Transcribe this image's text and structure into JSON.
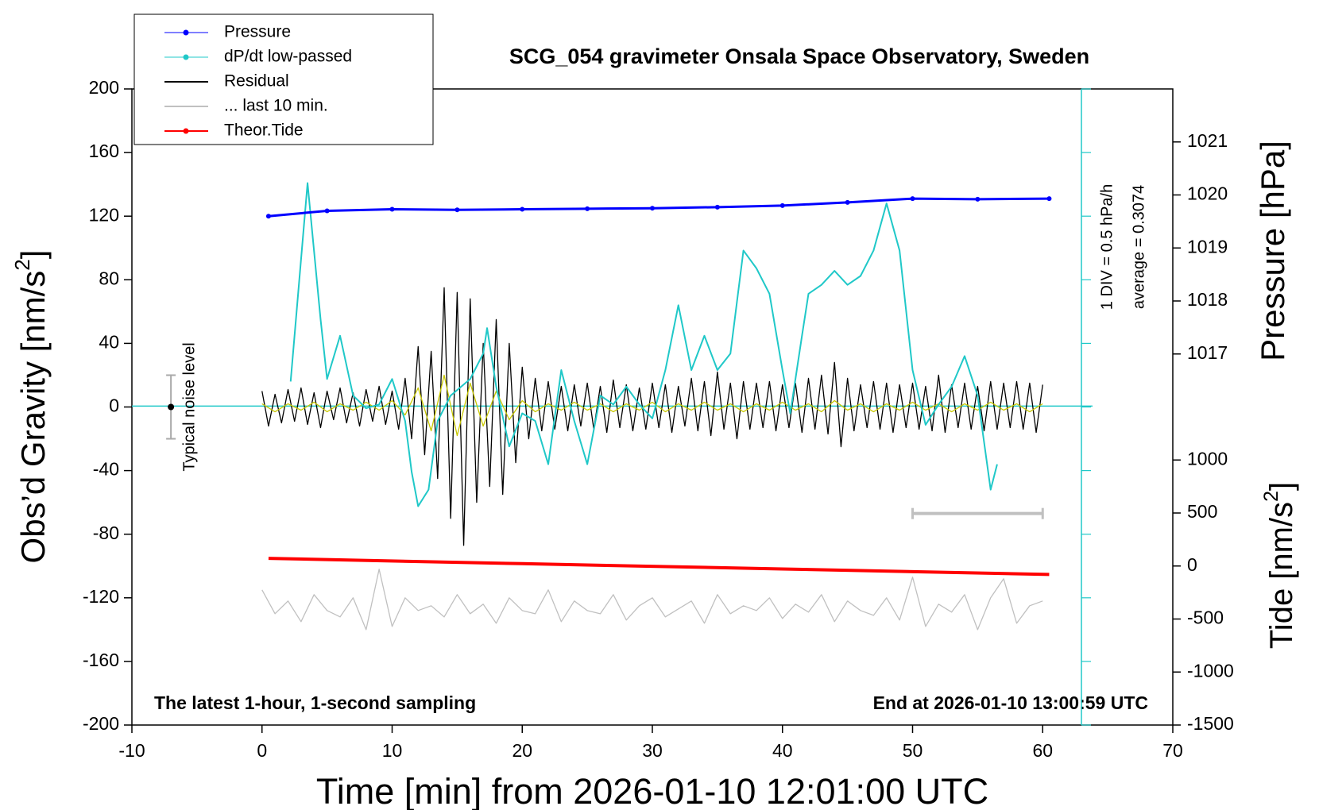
{
  "chart_data": {
    "type": "line",
    "title": "SCG_054 gravimeter Onsala Space Observatory, Sweden",
    "xlabel": "Time [min] from 2026-01-10 12:01:00 UTC",
    "ylabel": {
      "text": "Obs’d Gravity [nm/s",
      "sup": "2",
      "close": "]"
    },
    "y2label": "Pressure [hPa]",
    "y3label": {
      "text": "Tide [nm/s",
      "sup": "2",
      "close": "]"
    },
    "xlim": [
      -10,
      70
    ],
    "xticks": [
      -10,
      0,
      10,
      20,
      30,
      40,
      50,
      60,
      70
    ],
    "ylim": [
      -200,
      200
    ],
    "yticks": [
      -200,
      -160,
      -120,
      -80,
      -40,
      0,
      40,
      80,
      120,
      160,
      200
    ],
    "y2lim": [
      1010,
      1022
    ],
    "y2ticks": [
      1017,
      1018,
      1019,
      1020,
      1021
    ],
    "y3lim": [
      -1500,
      4500
    ],
    "y3ticks": [
      -1500,
      -1000,
      -500,
      0,
      500,
      1000
    ],
    "y4lim": [
      -2.2,
      2.8
    ],
    "y4ticks": [
      -2.2,
      -1.7,
      -1.2,
      -0.7,
      -0.2,
      0.3,
      0.8,
      1.3,
      1.8,
      2.3,
      2.8
    ],
    "y4_division_label": "1 DIV = 0.5 hPa/h",
    "y4_average": {
      "value": 0.3074,
      "label": "average = 0.3074"
    },
    "note_left": "The latest 1-hour, 1-second sampling",
    "note_right": "End at 2026-01-10 13:00:59 UTC",
    "noise_level": {
      "x": -7,
      "y": 0,
      "error": 20,
      "label": "Typical noise level"
    },
    "scale_bar": {
      "x": [
        50,
        60
      ],
      "y": -67,
      "color": "#c0c0c0"
    },
    "legend": "upper left",
    "series": [
      {
        "name": "Pressure",
        "color": "#0000ff",
        "axis": "y2",
        "marker": true,
        "x": [
          0.5,
          5,
          10,
          15,
          20,
          25,
          30,
          35,
          40,
          45,
          50,
          55,
          60.5
        ],
        "values": [
          1019.6,
          1019.7,
          1019.73,
          1019.72,
          1019.73,
          1019.74,
          1019.75,
          1019.77,
          1019.8,
          1019.86,
          1019.93,
          1019.92,
          1019.93
        ]
      },
      {
        "name": "dP/dt low-passed",
        "color": "#20c8c8",
        "axis": "y4",
        "marker": false,
        "x": [
          2.2,
          3.5,
          4.5,
          5,
          6,
          7,
          8,
          9,
          10,
          11,
          11.5,
          12,
          12.8,
          13.5,
          14.5,
          16,
          17,
          17.3,
          18,
          19,
          20,
          21,
          22,
          23,
          24,
          25,
          26,
          27,
          28,
          29,
          30,
          31,
          32,
          33,
          34,
          35,
          36,
          37,
          38,
          39,
          40,
          40.6,
          41.5,
          42,
          43,
          44,
          45,
          46,
          47,
          48,
          49,
          50,
          51,
          52,
          53,
          54,
          55,
          56,
          56.5
        ],
        "values": [
          0.5,
          2.06,
          0.99,
          0.52,
          0.86,
          0.39,
          0.29,
          0.32,
          0.52,
          0.19,
          -0.21,
          -0.48,
          -0.35,
          0.19,
          0.39,
          0.52,
          0.72,
          0.92,
          0.46,
          -0.01,
          0.25,
          0.19,
          -0.15,
          0.59,
          0.19,
          -0.15,
          0.39,
          0.32,
          0.46,
          0.32,
          0.21,
          0.59,
          1.1,
          0.59,
          0.86,
          0.59,
          0.72,
          1.53,
          1.39,
          1.19,
          0.59,
          0.25,
          0.86,
          1.19,
          1.26,
          1.37,
          1.26,
          1.33,
          1.53,
          1.9,
          1.53,
          0.59,
          0.16,
          0.32,
          0.46,
          0.7,
          0.39,
          -0.35,
          -0.15
        ]
      },
      {
        "name": "Residual",
        "color": "#000000",
        "axis": "y",
        "marker": false,
        "x": [
          0,
          0.5,
          1,
          1.5,
          2,
          2.5,
          3,
          3.5,
          4,
          4.5,
          5,
          5.5,
          6,
          6.5,
          7,
          7.5,
          8,
          8.5,
          9,
          9.5,
          10,
          10.5,
          11,
          11.5,
          12,
          12.5,
          13,
          13.5,
          14,
          14.5,
          15,
          15.5,
          16,
          16.5,
          17,
          17.5,
          18,
          18.5,
          19,
          19.5,
          20,
          20.5,
          21,
          21.5,
          22,
          22.5,
          23,
          23.5,
          24,
          24.5,
          25,
          25.5,
          26,
          26.5,
          27,
          27.5,
          28,
          28.5,
          29,
          29.5,
          30,
          30.5,
          31,
          31.5,
          32,
          32.5,
          33,
          33.5,
          34,
          34.5,
          35,
          35.5,
          36,
          36.5,
          37,
          37.5,
          38,
          38.5,
          39,
          39.5,
          40,
          40.5,
          41,
          41.5,
          42,
          42.5,
          43,
          43.5,
          44,
          44.5,
          45,
          45.5,
          46,
          46.5,
          47,
          47.5,
          48,
          48.5,
          49,
          49.5,
          50,
          50.5,
          51,
          51.5,
          52,
          52.5,
          53,
          53.5,
          54,
          54.5,
          55,
          55.5,
          56,
          56.5,
          57,
          57.5,
          58,
          58.5,
          59,
          59.5,
          60
        ],
        "values": [
          10,
          -12,
          8,
          -10,
          11,
          -9,
          12,
          -11,
          9,
          -13,
          10,
          -8,
          12,
          -10,
          9,
          -12,
          11,
          -9,
          13,
          -11,
          10,
          -14,
          18,
          -20,
          38,
          -30,
          35,
          -45,
          75,
          -70,
          72,
          -87,
          68,
          -60,
          40,
          -50,
          55,
          -55,
          40,
          -35,
          25,
          -20,
          18,
          -15,
          16,
          -14,
          13,
          -15,
          14,
          -12,
          15,
          -14,
          13,
          -16,
          17,
          -13,
          14,
          -15,
          12,
          -14,
          15,
          -13,
          14,
          -16,
          13,
          -12,
          18,
          -15,
          16,
          -18,
          22,
          -14,
          15,
          -20,
          16,
          -14,
          15,
          -13,
          16,
          -15,
          14,
          -13,
          15,
          -16,
          18,
          -14,
          20,
          -17,
          28,
          -25,
          18,
          -15,
          14,
          -13,
          16,
          -14,
          15,
          -16,
          14,
          -13,
          15,
          -14,
          13,
          -15,
          20,
          -16,
          14,
          -13,
          15,
          -14,
          13,
          -15,
          16,
          -14,
          15,
          -13,
          16,
          -14,
          15,
          -16,
          14
        ]
      },
      {
        "name": "... last 10 min.",
        "color": "#c0c0c0",
        "axis": "y",
        "marker": false,
        "x": [
          0,
          1,
          2,
          3,
          4,
          5,
          6,
          7,
          8,
          9,
          10,
          11,
          12,
          13,
          14,
          15,
          16,
          17,
          18,
          19,
          20,
          21,
          22,
          23,
          24,
          25,
          26,
          27,
          28,
          29,
          30,
          31,
          32,
          33,
          34,
          35,
          36,
          37,
          38,
          39,
          40,
          41,
          42,
          43,
          44,
          45,
          46,
          47,
          48,
          49,
          50,
          51,
          52,
          53,
          54,
          55,
          56,
          57,
          58,
          59,
          60
        ],
        "values": [
          -115,
          -130,
          -122,
          -135,
          -118,
          -128,
          -132,
          -120,
          -140,
          -102,
          -138,
          -120,
          -128,
          -125,
          -132,
          -118,
          -130,
          -124,
          -136,
          -120,
          -128,
          -130,
          -115,
          -135,
          -122,
          -128,
          -130,
          -118,
          -134,
          -125,
          -120,
          -132,
          -127,
          -122,
          -136,
          -118,
          -130,
          -125,
          -128,
          -120,
          -133,
          -124,
          -129,
          -118,
          -135,
          -122,
          -128,
          -131,
          -120,
          -134,
          -107,
          -138,
          -124,
          -129,
          -118,
          -140,
          -120,
          -108,
          -136,
          -125,
          -122
        ]
      },
      {
        "name": "Theor.Tide",
        "color": "#ff0000",
        "axis": "y3",
        "marker": false,
        "x": [
          0.5,
          20,
          40,
          60.5
        ],
        "values": [
          72,
          22,
          -28,
          -80
        ]
      },
      {
        "color": "#c8c800",
        "axis": "y",
        "marker": false,
        "x": [
          0,
          1,
          2,
          3,
          4,
          5,
          6,
          7,
          8,
          9,
          10,
          11,
          12,
          13,
          14,
          15,
          16,
          17,
          18,
          19,
          20,
          21,
          22,
          23,
          24,
          25,
          26,
          27,
          28,
          29,
          30,
          31,
          32,
          33,
          34,
          35,
          36,
          37,
          38,
          39,
          40,
          41,
          42,
          43,
          44,
          45,
          46,
          47,
          48,
          49,
          50,
          51,
          52,
          53,
          54,
          55,
          56,
          57,
          58,
          59,
          60
        ],
        "values": [
          2,
          -3,
          2,
          -2,
          3,
          -3,
          2,
          -2,
          3,
          -2,
          4,
          -5,
          12,
          -15,
          20,
          -18,
          15,
          -12,
          10,
          -8,
          4,
          -3,
          2,
          -2,
          3,
          -2,
          2,
          -3,
          2,
          -2,
          3,
          -3,
          2,
          -2,
          3,
          -2,
          2,
          -3,
          2,
          -2,
          3,
          -2,
          2,
          -3,
          4,
          -2,
          2,
          -3,
          2,
          -2,
          3,
          -2,
          2,
          -3,
          2,
          -2,
          3,
          -2,
          2,
          -3,
          2
        ]
      }
    ]
  }
}
